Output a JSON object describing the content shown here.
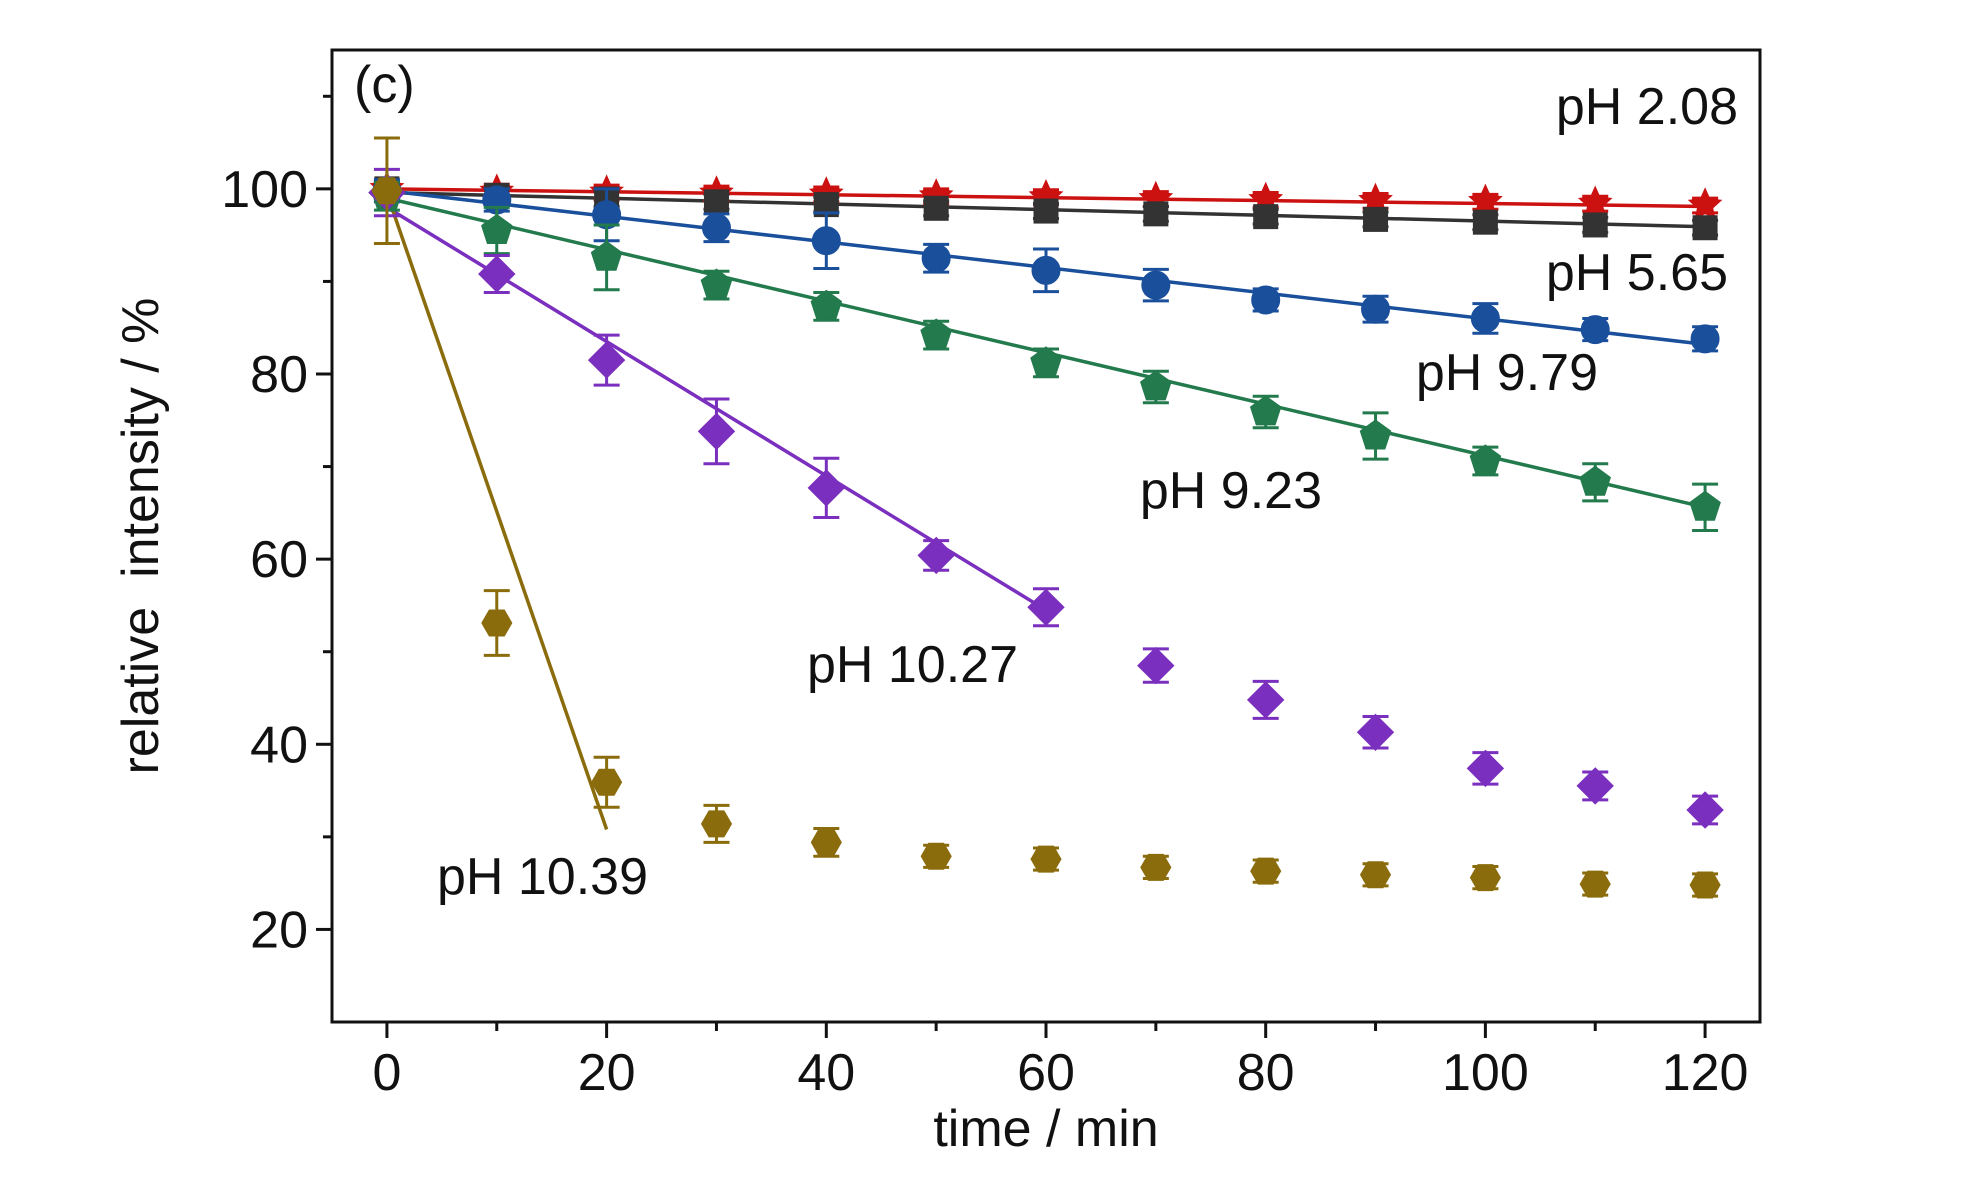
{
  "chart_data": {
    "type": "scatter",
    "panel_label": "(c)",
    "title": "",
    "xlabel": "time / min",
    "ylabel": "relative  intensity / %",
    "xlim": [
      -5,
      125
    ],
    "ylim": [
      10,
      115
    ],
    "x_ticks": [
      0,
      20,
      40,
      60,
      80,
      100,
      120
    ],
    "y_ticks": [
      20,
      40,
      60,
      80,
      100
    ],
    "x_tick_labels": [
      "0",
      "20",
      "40",
      "60",
      "80",
      "100",
      "120"
    ],
    "y_tick_labels": [
      "20",
      "40",
      "60",
      "80",
      "100"
    ],
    "grid": false,
    "legend": "none",
    "series": [
      {
        "name": "pH 2.08",
        "color": "#cc1111",
        "marker": "star",
        "x": [
          0,
          10,
          20,
          30,
          40,
          50,
          60,
          70,
          80,
          90,
          100,
          110,
          120
        ],
        "y": [
          100,
          99.7,
          99.6,
          99.5,
          99.4,
          99.2,
          99.1,
          98.9,
          98.8,
          98.7,
          98.6,
          98.4,
          98.2
        ],
        "err": [
          0.8,
          0.8,
          0.8,
          0.8,
          0.8,
          0.8,
          0.8,
          0.8,
          0.8,
          0.8,
          0.8,
          0.8,
          0.8
        ],
        "fit": [
          [
            0,
            100
          ],
          [
            120,
            98.1
          ]
        ]
      },
      {
        "name": "pH 5.65",
        "color": "#333333",
        "marker": "square",
        "x": [
          0,
          10,
          20,
          30,
          40,
          50,
          60,
          70,
          80,
          90,
          100,
          110,
          120
        ],
        "y": [
          100,
          99.3,
          98.9,
          98.6,
          98.3,
          97.9,
          97.6,
          97.3,
          97.0,
          96.7,
          96.4,
          96.1,
          95.8
        ],
        "err": [
          0.8,
          0.8,
          0.8,
          0.8,
          0.8,
          0.8,
          0.8,
          0.8,
          0.8,
          0.8,
          0.8,
          0.8,
          0.8
        ],
        "fit": [
          [
            0,
            99.6
          ],
          [
            120,
            95.9
          ]
        ]
      },
      {
        "name": "pH 9.79",
        "color": "#1a4f9c",
        "marker": "circle",
        "x": [
          0,
          10,
          20,
          30,
          40,
          50,
          60,
          70,
          80,
          90,
          100,
          110,
          120
        ],
        "y": [
          99.8,
          98.8,
          97.2,
          95.8,
          94.4,
          92.5,
          91.2,
          89.6,
          88.0,
          87.0,
          86.0,
          84.8,
          83.8
        ],
        "err": [
          1.2,
          1.2,
          2.8,
          1.5,
          3.0,
          1.5,
          2.3,
          1.7,
          1.2,
          1.4,
          1.6,
          1.2,
          1.3
        ],
        "fit": [
          [
            0,
            99.8
          ],
          [
            120,
            83.2
          ]
        ]
      },
      {
        "name": "pH 9.23",
        "color": "#237a4c",
        "marker": "pentagon",
        "x": [
          0,
          10,
          20,
          30,
          40,
          50,
          60,
          70,
          80,
          90,
          100,
          110,
          120
        ],
        "y": [
          99.2,
          95.5,
          92.6,
          89.6,
          87.3,
          84.2,
          81.2,
          78.6,
          75.9,
          73.3,
          70.6,
          68.3,
          65.6
        ],
        "err": [
          1.5,
          2.5,
          3.5,
          1.5,
          1.5,
          1.5,
          1.5,
          1.7,
          1.7,
          2.5,
          1.5,
          2.0,
          2.5
        ],
        "fit": [
          [
            0,
            99.0
          ],
          [
            120,
            65.6
          ]
        ]
      },
      {
        "name": "pH 10.27",
        "color": "#7b2fbe",
        "marker": "diamond",
        "x": [
          0,
          10,
          20,
          30,
          40,
          50,
          60,
          70,
          80,
          90,
          100,
          110,
          120
        ],
        "y": [
          99.6,
          90.8,
          81.5,
          73.8,
          67.7,
          60.4,
          54.8,
          48.5,
          44.8,
          41.3,
          37.4,
          35.5,
          32.9
        ],
        "err": [
          2.5,
          2.0,
          2.7,
          3.5,
          3.2,
          1.6,
          2.0,
          1.8,
          2.0,
          1.7,
          1.7,
          1.5,
          1.5
        ],
        "fit": [
          [
            0,
            98.0
          ],
          [
            60,
            54.5
          ]
        ]
      },
      {
        "name": "pH 10.39",
        "color": "#8b6c0d",
        "marker": "hexagon",
        "x": [
          0,
          10,
          20,
          30,
          40,
          50,
          60,
          70,
          80,
          90,
          100,
          110,
          120
        ],
        "y": [
          99.8,
          53.1,
          35.9,
          31.4,
          29.4,
          27.9,
          27.6,
          26.7,
          26.3,
          25.9,
          25.6,
          24.9,
          24.8
        ],
        "err": [
          5.7,
          3.5,
          2.7,
          2.0,
          1.5,
          1.2,
          1.2,
          1.2,
          1.2,
          1.2,
          1.2,
          1.2,
          1.2
        ],
        "fit": [
          [
            0,
            99.5
          ],
          [
            20,
            30.8
          ]
        ]
      }
    ]
  }
}
